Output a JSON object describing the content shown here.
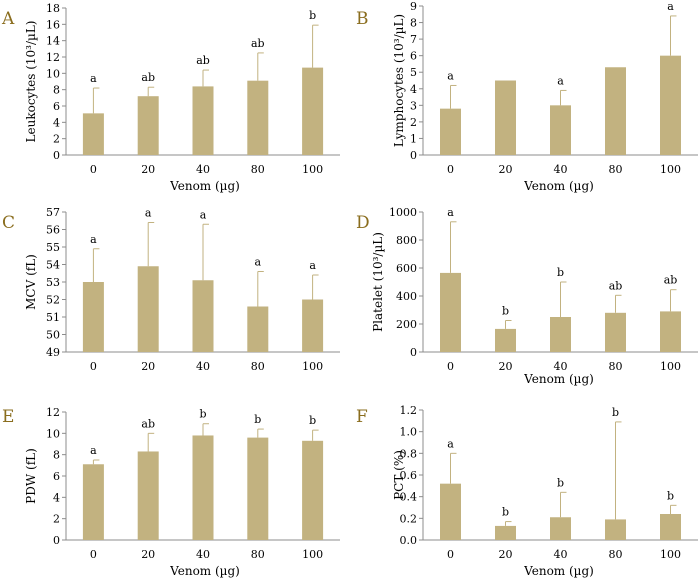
{
  "colors": {
    "bar": "#c2b280",
    "error": "#c2b280",
    "axis": "#8c8c8c",
    "letter": "#8a6d1e",
    "text": "#000000"
  },
  "chart_data": [
    {
      "type": "bar",
      "panel": "A",
      "categories": [
        "0",
        "20",
        "40",
        "80",
        "100"
      ],
      "values": [
        5.1,
        7.2,
        8.4,
        9.1,
        10.7
      ],
      "errors": [
        3.1,
        1.1,
        2.0,
        3.4,
        5.2
      ],
      "significance": [
        "a",
        "ab",
        "ab",
        "ab",
        "b"
      ],
      "xlabel": "Venom (µg)",
      "ylabel": "Leukocytes (10³/µL)",
      "ylim": [
        0,
        18
      ],
      "yticks": [
        0,
        2,
        4,
        6,
        8,
        10,
        12,
        14,
        16,
        18
      ]
    },
    {
      "type": "bar",
      "panel": "B",
      "categories": [
        "0",
        "20",
        "40",
        "80",
        "100"
      ],
      "values": [
        2.8,
        4.5,
        3.0,
        5.3,
        6.0
      ],
      "errors": [
        1.4,
        0,
        0.9,
        0,
        2.4
      ],
      "significance": [
        "a",
        "",
        "a",
        "",
        "a"
      ],
      "xlabel": "Venom (µg)",
      "ylabel": "Lymphocytes (10³/µL)",
      "ylim": [
        0,
        9
      ],
      "yticks": [
        0,
        1,
        2,
        3,
        4,
        5,
        6,
        7,
        8,
        9
      ]
    },
    {
      "type": "bar",
      "panel": "C",
      "categories": [
        "0",
        "20",
        "40",
        "80",
        "100"
      ],
      "values": [
        53.0,
        53.9,
        53.1,
        51.6,
        52.0
      ],
      "errors": [
        1.9,
        2.5,
        3.2,
        2.0,
        1.4
      ],
      "significance": [
        "a",
        "a",
        "a",
        "a",
        "a"
      ],
      "xlabel": "",
      "ylabel": "MCV (fL)",
      "ylim": [
        49,
        57
      ],
      "yticks": [
        49,
        50,
        51,
        52,
        53,
        54,
        55,
        56,
        57
      ]
    },
    {
      "type": "bar",
      "panel": "D",
      "categories": [
        "0",
        "20",
        "40",
        "80",
        "100"
      ],
      "values": [
        565,
        165,
        250,
        280,
        290
      ],
      "errors": [
        365,
        60,
        250,
        125,
        155
      ],
      "significance": [
        "a",
        "b",
        "b",
        "ab",
        "ab"
      ],
      "xlabel": "Venom (µg)",
      "ylabel": "Platelet (10³/µL)",
      "ylim": [
        0,
        1000
      ],
      "yticks": [
        0,
        200,
        400,
        600,
        800,
        1000
      ]
    },
    {
      "type": "bar",
      "panel": "E",
      "categories": [
        "0",
        "20",
        "40",
        "80",
        "100"
      ],
      "values": [
        7.1,
        8.3,
        9.8,
        9.6,
        9.3
      ],
      "errors": [
        0.4,
        1.7,
        1.1,
        0.8,
        1.0
      ],
      "significance": [
        "a",
        "ab",
        "b",
        "b",
        "b"
      ],
      "xlabel": "Venom (µg)",
      "ylabel": "PDW (fL)",
      "ylim": [
        0,
        12
      ],
      "yticks": [
        0,
        2,
        4,
        6,
        8,
        10,
        12
      ]
    },
    {
      "type": "bar",
      "panel": "F",
      "categories": [
        "0",
        "20",
        "40",
        "80",
        "100"
      ],
      "values": [
        0.52,
        0.13,
        0.21,
        0.19,
        0.24
      ],
      "errors": [
        0.28,
        0.04,
        0.23,
        0.9,
        0.08
      ],
      "significance": [
        "a",
        "b",
        "b",
        "b",
        "b"
      ],
      "xlabel": "Venom (µg)",
      "ylabel": "PCT (%)",
      "ylim": [
        0,
        1.2
      ],
      "yticks": [
        0,
        0.2,
        0.4,
        0.6,
        0.8,
        1,
        1.2
      ],
      "ytick_labels": [
        "0.0",
        "0.2",
        "0.4",
        "0.6",
        "0.8",
        "1.0",
        "1.2"
      ]
    }
  ]
}
